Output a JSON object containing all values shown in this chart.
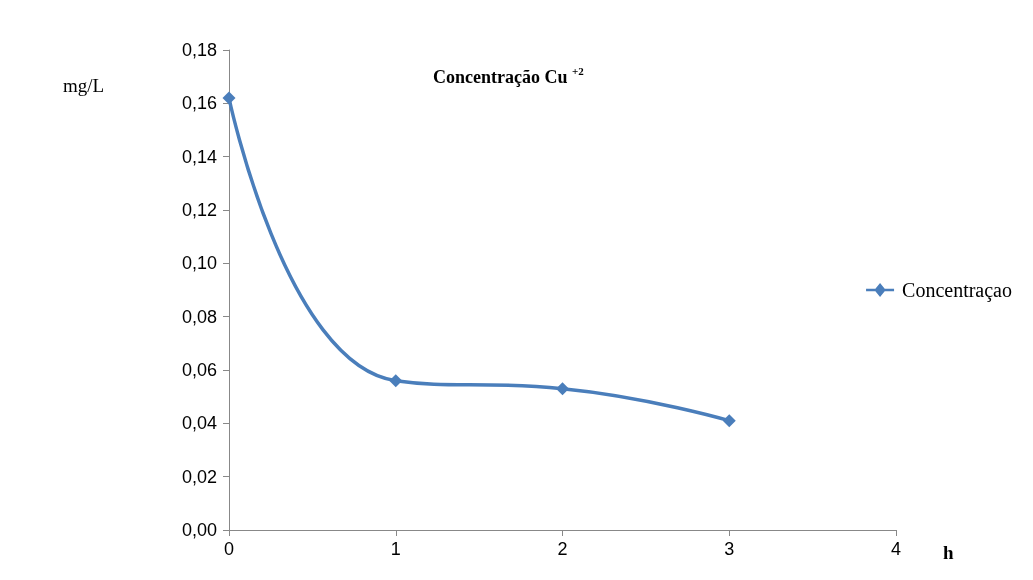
{
  "chart_data": {
    "type": "line",
    "title": "Concentração Cu $^{+2}$",
    "xlabel": "h",
    "ylabel": "mg/L",
    "x": [
      0,
      1,
      2,
      3
    ],
    "series": [
      {
        "name": "Concentraçao",
        "color": "#4a7ebb",
        "values": [
          0.162,
          0.056,
          0.053,
          0.041
        ]
      }
    ],
    "xlim": [
      0,
      4
    ],
    "xticks": [
      0,
      1,
      2,
      3,
      4
    ],
    "ylim": [
      0,
      0.18
    ],
    "yticks": [
      {
        "value": 0,
        "label": "0,00"
      },
      {
        "value": 0.02,
        "label": "0,02"
      },
      {
        "value": 0.04,
        "label": "0,04"
      },
      {
        "value": 0.06,
        "label": "0,06"
      },
      {
        "value": 0.08,
        "label": "0,08"
      },
      {
        "value": 0.1,
        "label": "0,10"
      },
      {
        "value": 0.12,
        "label": "0,12"
      },
      {
        "value": 0.14,
        "label": "0,14"
      },
      {
        "value": 0.16,
        "label": "0,16"
      },
      {
        "value": 0.18,
        "label": "0,18"
      }
    ],
    "grid": false,
    "legend": "right",
    "marker": "diamond",
    "line_style": "solid"
  }
}
